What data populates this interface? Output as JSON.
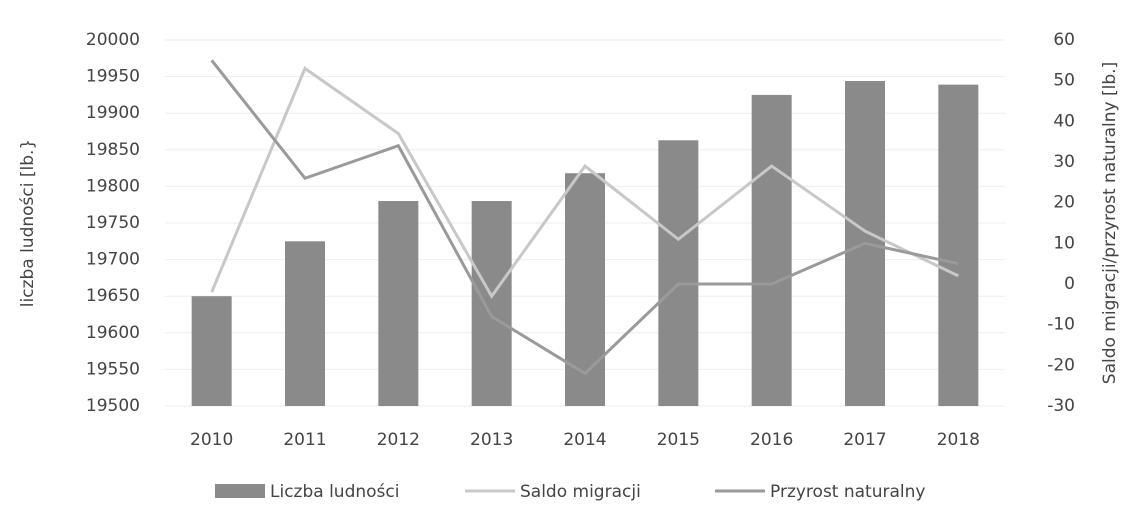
{
  "chart_data": {
    "type": "bar_line",
    "categories": [
      "2010",
      "2011",
      "2012",
      "2013",
      "2014",
      "2015",
      "2016",
      "2017",
      "2018"
    ],
    "ylabel": "liczba ludności [lb.}",
    "y2label": "Saldo migracji/przyrost naturalny [lb.]",
    "ylim": [
      19500,
      20000
    ],
    "yticks": [
      19500,
      19550,
      19600,
      19650,
      19700,
      19750,
      19800,
      19850,
      19900,
      19950,
      20000
    ],
    "y2lim": [
      -30,
      60
    ],
    "y2ticks": [
      -30,
      -20,
      -10,
      0,
      10,
      20,
      30,
      40,
      50,
      60
    ],
    "legend": "bottom",
    "series": [
      {
        "name": "Liczba ludności",
        "type": "bar",
        "color": "#8a8a8a",
        "values": [
          19650,
          19725,
          19780,
          19780,
          19818,
          19863,
          19925,
          19944,
          19939
        ]
      },
      {
        "name": "Saldo migracji",
        "type": "line",
        "axis": "y2",
        "color": "#c8c8c8",
        "values": [
          -2,
          53,
          37,
          -3,
          29,
          11,
          29,
          13,
          2
        ]
      },
      {
        "name": "Przyrost naturalny",
        "type": "line",
        "axis": "y2",
        "color": "#9a9a9a",
        "values": [
          55,
          26,
          34,
          -8,
          -22,
          0,
          0,
          10,
          5
        ]
      }
    ]
  }
}
